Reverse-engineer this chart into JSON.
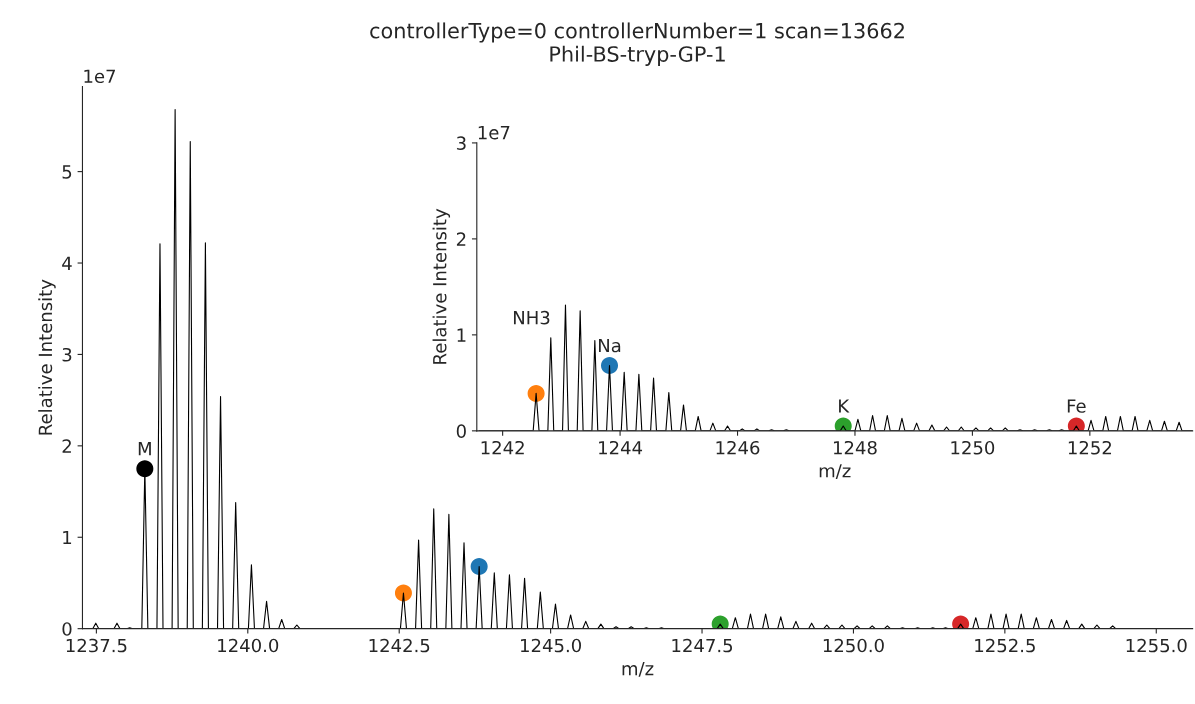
{
  "chart_data": [
    {
      "type": "line",
      "title": "controllerType=0 controllerNumber=1 scan=13662\nPhil-BS-tryp-GP-1",
      "xlabel": "m/z",
      "ylabel": "Relative Intensity",
      "xlim": [
        1237.27,
        1255.6
      ],
      "xticks": [
        {
          "value": 1237.5,
          "label": "1237.5"
        },
        {
          "value": 1240,
          "label": "1240.0"
        },
        {
          "value": 1242.5,
          "label": "1242.5"
        },
        {
          "value": 1245,
          "label": "1245.0"
        },
        {
          "value": 1247.5,
          "label": "1247.5"
        },
        {
          "value": 1250,
          "label": "1250.0"
        },
        {
          "value": 1252.5,
          "label": "1252.5"
        },
        {
          "value": 1255,
          "label": "1255.0"
        }
      ],
      "ylim": [
        0,
        5.93
      ],
      "yticks": [
        0,
        1,
        2,
        3,
        4,
        5
      ],
      "series": [
        {
          "color": "#000000",
          "x": [
            1237.3,
            1237.44,
            1237.49,
            1237.54,
            1237.79,
            1237.84,
            1237.89,
            1238.0,
            1238.05,
            1238.1,
            1238.25,
            1238.3,
            1238.35,
            1238.5,
            1238.55,
            1238.6,
            1238.75,
            1238.8,
            1238.85,
            1239.0,
            1239.05,
            1239.1,
            1239.25,
            1239.3,
            1239.35,
            1239.5,
            1239.55,
            1239.6,
            1239.75,
            1239.8,
            1239.85,
            1240.01,
            1240.06,
            1240.11,
            1240.26,
            1240.31,
            1240.36,
            1240.51,
            1240.56,
            1240.61,
            1240.76,
            1240.81,
            1240.86,
            1242.52,
            1242.57,
            1242.62,
            1242.77,
            1242.82,
            1242.87,
            1243.02,
            1243.07,
            1243.12,
            1243.27,
            1243.32,
            1243.37,
            1243.52,
            1243.57,
            1243.62,
            1243.77,
            1243.82,
            1243.87,
            1244.02,
            1244.07,
            1244.12,
            1244.27,
            1244.32,
            1244.37,
            1244.52,
            1244.57,
            1244.62,
            1244.78,
            1244.83,
            1244.88,
            1245.03,
            1245.08,
            1245.13,
            1245.28,
            1245.33,
            1245.38,
            1245.53,
            1245.58,
            1245.63,
            1245.78,
            1245.83,
            1245.88,
            1246.03,
            1246.08,
            1246.13,
            1246.28,
            1246.33,
            1246.38,
            1246.53,
            1246.58,
            1246.63,
            1246.78,
            1246.83,
            1246.88,
            1247.75,
            1247.8,
            1247.85,
            1248.0,
            1248.05,
            1248.1,
            1248.25,
            1248.3,
            1248.35,
            1248.5,
            1248.55,
            1248.6,
            1248.75,
            1248.8,
            1248.85,
            1249.0,
            1249.05,
            1249.1,
            1249.26,
            1249.31,
            1249.36,
            1249.51,
            1249.56,
            1249.61,
            1249.76,
            1249.81,
            1249.86,
            1250.01,
            1250.06,
            1250.11,
            1250.26,
            1250.31,
            1250.36,
            1250.51,
            1250.56,
            1250.61,
            1250.76,
            1250.81,
            1250.86,
            1251.01,
            1251.06,
            1251.11,
            1251.26,
            1251.31,
            1251.36,
            1251.47,
            1251.52,
            1251.57,
            1251.72,
            1251.77,
            1251.82,
            1251.97,
            1252.02,
            1252.07,
            1252.22,
            1252.27,
            1252.32,
            1252.47,
            1252.52,
            1252.57,
            1252.72,
            1252.77,
            1252.82,
            1252.97,
            1253.02,
            1253.07,
            1253.22,
            1253.27,
            1253.32,
            1253.47,
            1253.52,
            1253.57,
            1253.72,
            1253.77,
            1253.82,
            1253.97,
            1254.02,
            1254.07,
            1254.23,
            1254.28,
            1254.33,
            1255.6
          ],
          "values": [
            0,
            0,
            0.06,
            0,
            0,
            0.06,
            0,
            0,
            0.01,
            0,
            0,
            1.75,
            0,
            0,
            4.21,
            0,
            0,
            5.68,
            0,
            0,
            5.33,
            0,
            0,
            4.22,
            0,
            0,
            2.54,
            0,
            0,
            1.38,
            0,
            0,
            0.7,
            0,
            0,
            0.3,
            0,
            0,
            0.1,
            0,
            0,
            0.04,
            0,
            0,
            0.39,
            0,
            0,
            0.97,
            0,
            0,
            1.31,
            0,
            0,
            1.25,
            0,
            0,
            0.94,
            0,
            0,
            0.68,
            0,
            0,
            0.61,
            0,
            0,
            0.59,
            0,
            0,
            0.55,
            0,
            0,
            0.4,
            0,
            0,
            0.27,
            0,
            0,
            0.15,
            0,
            0,
            0.08,
            0,
            0,
            0.05,
            0,
            0,
            0.02,
            0,
            0,
            0.02,
            0,
            0,
            0.01,
            0,
            0,
            0.01,
            0,
            0,
            0.05,
            0,
            0,
            0.12,
            0,
            0,
            0.16,
            0,
            0,
            0.16,
            0,
            0,
            0.13,
            0,
            0,
            0.08,
            0,
            0,
            0.06,
            0,
            0,
            0.04,
            0,
            0,
            0.04,
            0,
            0,
            0.03,
            0,
            0,
            0.03,
            0,
            0,
            0.03,
            0,
            0,
            0.01,
            0,
            0,
            0.01,
            0,
            0,
            0.01,
            0,
            0,
            0.01,
            0,
            0,
            0.05,
            0,
            0,
            0.12,
            0,
            0,
            0.16,
            0,
            0,
            0.16,
            0,
            0,
            0.16,
            0,
            0,
            0.12,
            0,
            0,
            0.1,
            0,
            0,
            0.09,
            0,
            0,
            0.05,
            0,
            0,
            0.04,
            0,
            0,
            0.03,
            0,
            0
          ]
        },
        {
          "type": "scatter",
          "x": [
            1238.3,
            1242.57,
            1243.82,
            1247.8,
            1251.77
          ],
          "values": [
            1.75,
            0.39,
            0.68,
            0.05,
            0.05
          ],
          "colors": [
            "#000000",
            "#ff7f0e",
            "#1f77b4",
            "#2ca02c",
            "#d62728"
          ]
        }
      ],
      "annotations": [
        "1e7",
        {
          "text": "M",
          "x": 1238.3,
          "y": 1.75
        }
      ]
    },
    {
      "type": "line",
      "xlabel": "m/z",
      "ylabel": "Relative Intensity",
      "xlim": [
        1241.56,
        1253.75
      ],
      "xticks": [
        1242,
        1244,
        1246,
        1248,
        1250,
        1252
      ],
      "ylim": [
        0,
        3
      ],
      "yticks": [
        0,
        1,
        2,
        3
      ],
      "series": [
        {
          "color": "#000000",
          "x": [
            1241.6,
            1242.52,
            1242.57,
            1242.62,
            1242.77,
            1242.82,
            1242.87,
            1243.02,
            1243.07,
            1243.12,
            1243.27,
            1243.32,
            1243.37,
            1243.52,
            1243.57,
            1243.62,
            1243.77,
            1243.82,
            1243.87,
            1244.02,
            1244.07,
            1244.12,
            1244.27,
            1244.32,
            1244.37,
            1244.52,
            1244.57,
            1244.62,
            1244.78,
            1244.83,
            1244.88,
            1245.03,
            1245.08,
            1245.13,
            1245.28,
            1245.33,
            1245.38,
            1245.53,
            1245.58,
            1245.63,
            1245.78,
            1245.83,
            1245.88,
            1246.03,
            1246.08,
            1246.13,
            1246.28,
            1246.33,
            1246.38,
            1246.53,
            1246.58,
            1246.63,
            1246.78,
            1246.83,
            1246.88,
            1247.75,
            1247.8,
            1247.85,
            1248.0,
            1248.05,
            1248.1,
            1248.25,
            1248.3,
            1248.35,
            1248.5,
            1248.55,
            1248.6,
            1248.75,
            1248.8,
            1248.85,
            1249.0,
            1249.05,
            1249.1,
            1249.26,
            1249.31,
            1249.36,
            1249.51,
            1249.56,
            1249.61,
            1249.76,
            1249.81,
            1249.86,
            1250.01,
            1250.06,
            1250.11,
            1250.26,
            1250.31,
            1250.36,
            1250.51,
            1250.56,
            1250.61,
            1250.76,
            1250.81,
            1250.86,
            1251.01,
            1251.06,
            1251.11,
            1251.26,
            1251.31,
            1251.36,
            1251.47,
            1251.52,
            1251.57,
            1251.72,
            1251.77,
            1251.82,
            1251.97,
            1252.02,
            1252.07,
            1252.22,
            1252.27,
            1252.32,
            1252.47,
            1252.52,
            1252.57,
            1252.72,
            1252.77,
            1252.82,
            1252.97,
            1253.02,
            1253.07,
            1253.22,
            1253.27,
            1253.32,
            1253.47,
            1253.52,
            1253.57,
            1253.75
          ],
          "values": [
            0,
            0,
            0.39,
            0,
            0,
            0.97,
            0,
            0,
            1.31,
            0,
            0,
            1.25,
            0,
            0,
            0.94,
            0,
            0,
            0.68,
            0,
            0,
            0.61,
            0,
            0,
            0.59,
            0,
            0,
            0.55,
            0,
            0,
            0.4,
            0,
            0,
            0.27,
            0,
            0,
            0.15,
            0,
            0,
            0.08,
            0,
            0,
            0.05,
            0,
            0,
            0.02,
            0,
            0,
            0.02,
            0,
            0,
            0.01,
            0,
            0,
            0.01,
            0,
            0,
            0.05,
            0,
            0,
            0.12,
            0,
            0,
            0.16,
            0,
            0,
            0.16,
            0,
            0,
            0.13,
            0,
            0,
            0.08,
            0,
            0,
            0.06,
            0,
            0,
            0.04,
            0,
            0,
            0.04,
            0,
            0,
            0.03,
            0,
            0,
            0.03,
            0,
            0,
            0.03,
            0,
            0,
            0.01,
            0,
            0,
            0.01,
            0,
            0,
            0.01,
            0,
            0,
            0.01,
            0,
            0,
            0.05,
            0,
            0,
            0.11,
            0,
            0,
            0.15,
            0,
            0,
            0.15,
            0,
            0,
            0.15,
            0,
            0,
            0.11,
            0,
            0,
            0.1,
            0,
            0,
            0.09,
            0,
            0
          ]
        },
        {
          "type": "scatter",
          "x": [
            1242.57,
            1243.82,
            1247.8,
            1251.77
          ],
          "values": [
            0.39,
            0.68,
            0.05,
            0.05
          ],
          "colors": [
            "#ff7f0e",
            "#1f77b4",
            "#2ca02c",
            "#d62728"
          ]
        }
      ],
      "annotations": [
        "1e7",
        {
          "text": "NH3",
          "x": 1242.82,
          "y": 0.97
        },
        {
          "text": "Na",
          "x": 1243.82,
          "y": 0.68
        },
        {
          "text": "K",
          "x": 1247.8,
          "y": 0.05
        },
        {
          "text": "Fe",
          "x": 1251.77,
          "y": 0.05
        }
      ]
    }
  ]
}
